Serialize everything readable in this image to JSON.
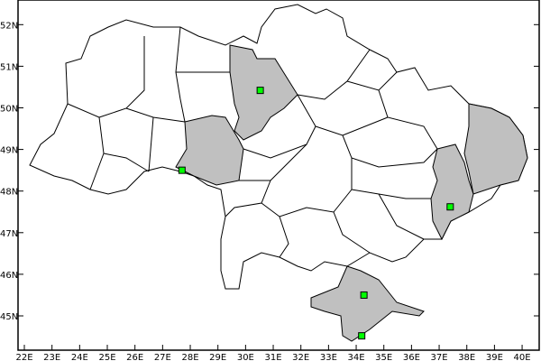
{
  "map": {
    "colors": {
      "background": "#ffffff",
      "land": "#ffffff",
      "highlight": "#c0c0c0",
      "border": "#000000",
      "marker": "#00ff00"
    },
    "x_axis": {
      "range": [
        21.8,
        40.6
      ],
      "ticks": [
        22,
        23,
        24,
        25,
        26,
        27,
        28,
        29,
        30,
        31,
        32,
        33,
        34,
        35,
        36,
        37,
        38,
        39,
        40
      ],
      "labels": [
        "22E",
        "23E",
        "24E",
        "25E",
        "26E",
        "27E",
        "28E",
        "29E",
        "30E",
        "31E",
        "32E",
        "33E",
        "34E",
        "35E",
        "36E",
        "37E",
        "38E",
        "39E",
        "40E"
      ]
    },
    "y_axis": {
      "range": [
        44.2,
        52.6
      ],
      "ticks": [
        45,
        46,
        47,
        48,
        49,
        50,
        51,
        52
      ],
      "labels": [
        "45N",
        "46N",
        "47N",
        "48N",
        "49N",
        "50N",
        "51N",
        "52N"
      ]
    },
    "markers": [
      {
        "lon": 30.53,
        "lat": 50.42
      },
      {
        "lon": 27.7,
        "lat": 48.5
      },
      {
        "lon": 37.4,
        "lat": 47.62
      },
      {
        "lon": 34.28,
        "lat": 45.5
      },
      {
        "lon": 34.2,
        "lat": 44.52
      }
    ],
    "highlighted_region_count": 5
  }
}
